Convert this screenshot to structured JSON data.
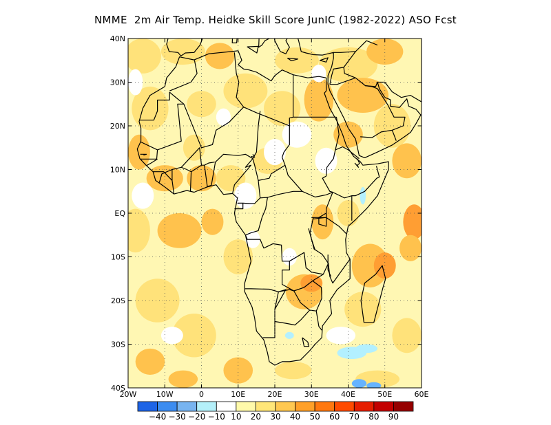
{
  "title": "NMME  2m Air Temp. Heidke Skill Score JunIC (1982-2022) ASO Fcst",
  "map": {
    "lon_range": [
      -20,
      60
    ],
    "lat_range": [
      -40,
      40
    ],
    "lon_ticks": [
      {
        "value": -20,
        "label": "20W"
      },
      {
        "value": -10,
        "label": "10W"
      },
      {
        "value": 0,
        "label": "0"
      },
      {
        "value": 10,
        "label": "10E"
      },
      {
        "value": 20,
        "label": "20E"
      },
      {
        "value": 30,
        "label": "30E"
      },
      {
        "value": 40,
        "label": "40E"
      },
      {
        "value": 50,
        "label": "50E"
      },
      {
        "value": 60,
        "label": "60E"
      }
    ],
    "lat_ticks": [
      {
        "value": 40,
        "label": "40N"
      },
      {
        "value": 30,
        "label": "30N"
      },
      {
        "value": 20,
        "label": "20N"
      },
      {
        "value": 10,
        "label": "10N"
      },
      {
        "value": 0,
        "label": "EQ"
      },
      {
        "value": -10,
        "label": "10S"
      },
      {
        "value": -20,
        "label": "20S"
      },
      {
        "value": -30,
        "label": "30S"
      },
      {
        "value": -40,
        "label": "40S"
      }
    ],
    "grid": "dotted",
    "field_colors": {
      "land_low": "#fff7b3",
      "mid": "#ffe27a",
      "high": "#ffc24d",
      "very_high": "#ff9e33",
      "neg": "#b3f0ff",
      "neg2": "#66b3ff"
    },
    "border_color": "#000000"
  },
  "colorbar": {
    "colors": [
      "#1e64e6",
      "#3c8cf0",
      "#78b4f0",
      "#b4f0fa",
      "#ffffff",
      "#fffaaa",
      "#ffe678",
      "#ffc850",
      "#ffa028",
      "#ff780f",
      "#ff4b00",
      "#e61e00",
      "#c30000",
      "#960000"
    ],
    "labels": [
      "-40",
      "-30",
      "-20",
      "-10",
      "10",
      "20",
      "30",
      "40",
      "50",
      "60",
      "70",
      "80",
      "90"
    ]
  }
}
